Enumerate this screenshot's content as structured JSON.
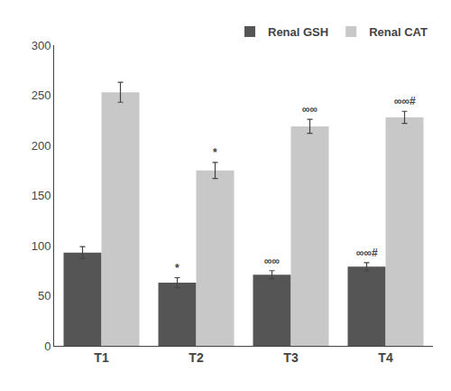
{
  "chart_data": {
    "type": "bar",
    "categories": [
      "T1",
      "T2",
      "T3",
      "T4"
    ],
    "series": [
      {
        "name": "Renal GSH",
        "color": "#555555",
        "values": [
          93,
          63,
          71,
          79
        ],
        "errors": [
          6,
          5,
          4,
          4
        ],
        "annotations": [
          null,
          "*",
          "∞∞",
          "∞∞#"
        ]
      },
      {
        "name": "Renal CAT",
        "color": "#c8c8c8",
        "values": [
          253,
          175,
          219,
          228
        ],
        "errors": [
          10,
          8,
          7,
          6
        ],
        "annotations": [
          null,
          "*",
          "∞∞",
          "∞∞#"
        ]
      }
    ],
    "ylim": [
      0,
      300
    ],
    "yticks": [
      0,
      50,
      100,
      150,
      200,
      250,
      300
    ],
    "grid": false,
    "legend": "upper right"
  }
}
